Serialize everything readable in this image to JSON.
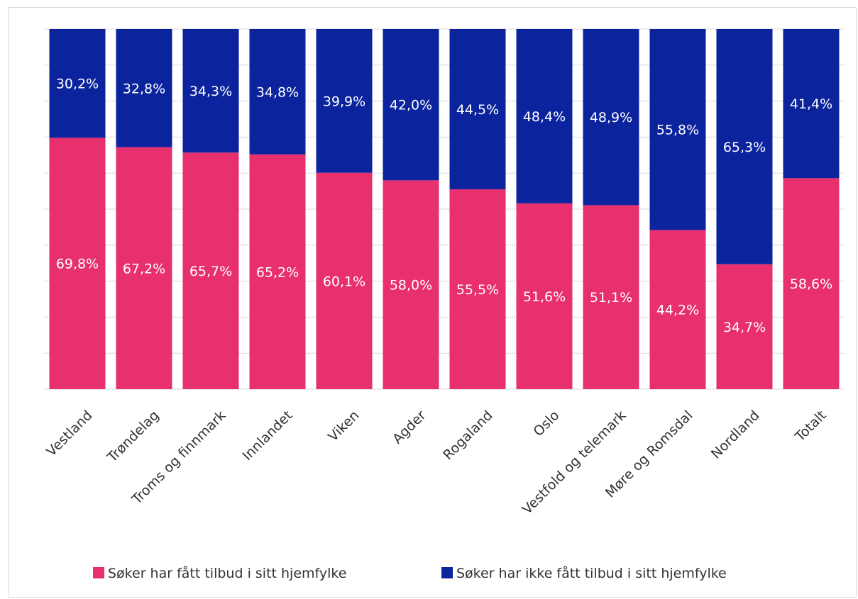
{
  "chart_data": {
    "type": "bar",
    "stacked": true,
    "categories": [
      "Vestland",
      "Trøndelag",
      "Troms og finnmark",
      "Innlandet",
      "Viken",
      "Agder",
      "Rogaland",
      "Oslo",
      "Vestfold og telemark",
      "Møre og Romsdal",
      "Nordland",
      "Totalt"
    ],
    "series": [
      {
        "name": "Søker har fått tilbud i sitt hjemfylke",
        "color": "#e8306f",
        "values": [
          69.8,
          67.2,
          65.7,
          65.2,
          60.1,
          58.0,
          55.5,
          51.6,
          51.1,
          44.2,
          34.7,
          58.6
        ],
        "labels": [
          "69,8%",
          "67,2%",
          "65,7%",
          "65,2%",
          "60,1%",
          "58,0%",
          "55,5%",
          "51,6%",
          "51,1%",
          "44,2%",
          "34,7%",
          "58,6%"
        ]
      },
      {
        "name": "Søker har ikke fått tilbud i sitt hjemfylke",
        "color": "#0c239e",
        "values": [
          30.2,
          32.8,
          34.3,
          34.8,
          39.9,
          42.0,
          44.5,
          48.4,
          48.9,
          55.8,
          65.3,
          41.4
        ],
        "labels": [
          "30,2%",
          "32,8%",
          "34,3%",
          "34,8%",
          "39,9%",
          "42,0%",
          "44,5%",
          "48,4%",
          "48,9%",
          "55,8%",
          "65,3%",
          "41,4%"
        ]
      }
    ],
    "ylim": [
      0,
      100
    ],
    "grid": true,
    "legend": "bottom"
  }
}
